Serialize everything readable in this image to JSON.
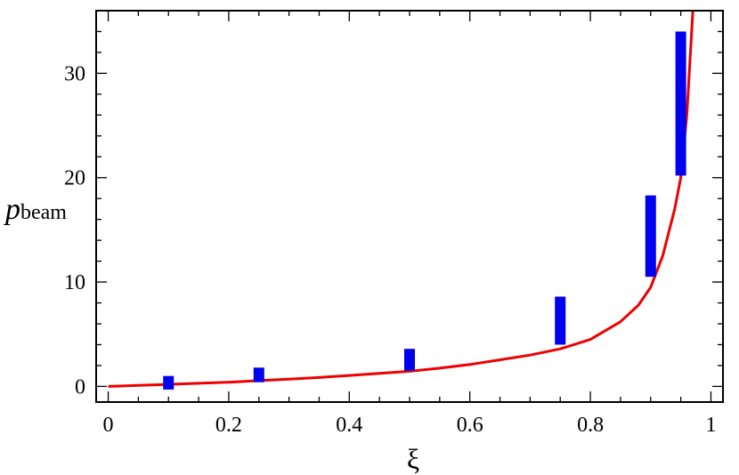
{
  "chart_data": {
    "type": "scatter",
    "xlabel": "ξ",
    "ylabel": "p",
    "ylabel_sub": "beam",
    "xlim": [
      -0.02,
      1.02
    ],
    "ylim": [
      -1.5,
      36
    ],
    "x_ticks": [
      0,
      0.2,
      0.4,
      0.6,
      0.8,
      1
    ],
    "x_tick_labels": [
      "0",
      "0.2",
      "0.4",
      "0.6",
      "0.8",
      "1"
    ],
    "y_ticks": [
      0,
      10,
      20,
      30
    ],
    "y_tick_labels": [
      "0",
      "10",
      "20",
      "30"
    ],
    "grid": false,
    "legend": "none",
    "colors": {
      "bars": "#0000ee",
      "curve": "#ee0000",
      "axes": "#000000"
    },
    "series": [
      {
        "type": "range-bars",
        "points": [
          {
            "x": 0.1,
            "low": -0.3,
            "high": 1.0
          },
          {
            "x": 0.25,
            "low": 0.4,
            "high": 1.8
          },
          {
            "x": 0.5,
            "low": 1.5,
            "high": 3.6
          },
          {
            "x": 0.75,
            "low": 4.0,
            "high": 8.6
          },
          {
            "x": 0.9,
            "low": 10.5,
            "high": 18.3
          },
          {
            "x": 0.95,
            "low": 20.2,
            "high": 34.0
          }
        ]
      },
      {
        "type": "line",
        "points": [
          [
            0,
            0
          ],
          [
            0.05,
            0.1
          ],
          [
            0.1,
            0.2
          ],
          [
            0.15,
            0.3
          ],
          [
            0.2,
            0.4
          ],
          [
            0.25,
            0.55
          ],
          [
            0.3,
            0.7
          ],
          [
            0.35,
            0.85
          ],
          [
            0.4,
            1.05
          ],
          [
            0.45,
            1.25
          ],
          [
            0.5,
            1.45
          ],
          [
            0.55,
            1.75
          ],
          [
            0.6,
            2.1
          ],
          [
            0.65,
            2.55
          ],
          [
            0.7,
            3.0
          ],
          [
            0.75,
            3.6
          ],
          [
            0.8,
            4.5
          ],
          [
            0.85,
            6.2
          ],
          [
            0.88,
            7.8
          ],
          [
            0.9,
            9.5
          ],
          [
            0.92,
            12.5
          ],
          [
            0.94,
            17.0
          ],
          [
            0.95,
            20.0
          ],
          [
            0.96,
            26.0
          ],
          [
            0.965,
            31.0
          ],
          [
            0.97,
            36.0
          ]
        ]
      }
    ]
  }
}
